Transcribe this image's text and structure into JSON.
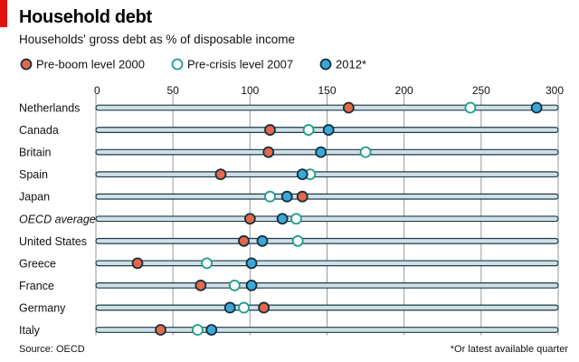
{
  "chart_data": {
    "type": "dot",
    "title": "Household debt",
    "subtitle": "Households' gross debt as % of disposable income",
    "xlim": [
      0,
      300
    ],
    "xticks": [
      0,
      50,
      100,
      150,
      200,
      250,
      300
    ],
    "categories": [
      "Netherlands",
      "Canada",
      "Britain",
      "Spain",
      "Japan",
      "OECD average",
      "United States",
      "Greece",
      "France",
      "Germany",
      "Italy"
    ],
    "italic_categories": [
      "OECD average"
    ],
    "series": [
      {
        "name": "Pre-boom level 2000",
        "color": "#e8674a",
        "style": "filled",
        "values": [
          164,
          113,
          112,
          81,
          134,
          100,
          96,
          27,
          68,
          109,
          42
        ]
      },
      {
        "name": "Pre-crisis level 2007",
        "color": "#1e9e8c",
        "style": "hollow",
        "values": [
          243,
          138,
          175,
          139,
          113,
          130,
          131,
          72,
          90,
          96,
          66
        ]
      },
      {
        "name": "2012*",
        "color": "#3aa8d8",
        "style": "filled",
        "values": [
          286,
          151,
          146,
          134,
          124,
          121,
          108,
          101,
          101,
          87,
          75
        ]
      }
    ],
    "source": "Source: OECD",
    "footnote": "*Or latest available quarter"
  }
}
